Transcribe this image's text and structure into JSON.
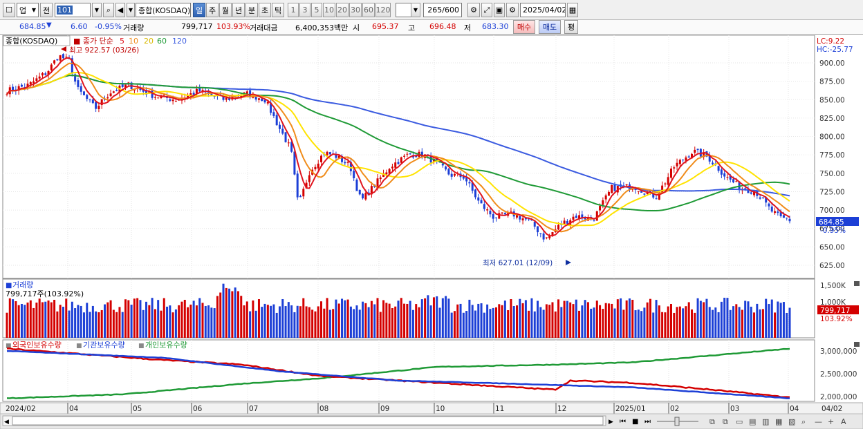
{
  "toolbar": {
    "market": "업",
    "prev_label": "전",
    "code": "101",
    "name": "종합(KOSDAQ)",
    "periods": [
      "일",
      "주",
      "월",
      "년",
      "분",
      "초",
      "틱"
    ],
    "active_period": "일",
    "intervals": [
      "1",
      "3",
      "5",
      "10",
      "20",
      "30",
      "60",
      "120"
    ],
    "count": "265",
    "count_total": "/600",
    "date": "2025/04/02"
  },
  "quote": {
    "price": "684.85",
    "direction_icon": "down-triangle-icon",
    "change": "6.60",
    "change_pct": "-0.95%",
    "volume_label": "거래량",
    "volume": "799,717",
    "volume_pct": "103.93%",
    "amount_label": "거래대금",
    "amount": "6,400,353백만",
    "open_label": "시",
    "open": "695.37",
    "high_label": "고",
    "high": "696.48",
    "low_label": "저",
    "low": "683.30",
    "buy_label": "매수",
    "sell_label": "매도",
    "avg_label": "평"
  },
  "main_panel": {
    "title": "종합(KOSDAQ)",
    "ma_label": "종가 단순",
    "ma_periods": [
      "5",
      "10",
      "20",
      "60",
      "120"
    ],
    "lc": "LC:9.22",
    "hc": "HC:-25.77",
    "price_tag": "684.85",
    "price_tag_pct": "-0.95%",
    "high_note": "최고 922.57 (03/26)",
    "low_note": "최저 627.01 (12/09)"
  },
  "volume_panel": {
    "title": "거래량",
    "info": "799,717주(103.92%)",
    "tag": "799,717",
    "tag_pct": "103.92%",
    "axis_labels": [
      "1,500K",
      "1,000K"
    ]
  },
  "holding_panel": {
    "legends": [
      "외국인보유수량",
      "기관보유수량",
      "개인보유수량"
    ],
    "axis_labels": [
      "3,000,000",
      "2,500,000",
      "2,000,000"
    ]
  },
  "x_axis": {
    "labels": [
      "2024/02",
      "04",
      "05",
      "06",
      "07",
      "08",
      "09",
      "10",
      "11",
      "12",
      "2025/01",
      "02",
      "03",
      "04",
      "04/02"
    ]
  },
  "colors": {
    "up": "#d40000",
    "down": "#1c3fd6",
    "ma5": "#e0141e",
    "ma10": "#f08c1a",
    "ma20": "#ffe300",
    "ma60": "#1f9a36",
    "ma120": "#3b5be0"
  },
  "chart_data": {
    "type": "line",
    "title": "종합(KOSDAQ)",
    "xlabel": "",
    "ylabel": "",
    "ylim": [
      600,
      935
    ],
    "y_ticks": [
      900,
      875,
      850,
      825,
      800,
      775,
      750,
      725,
      700,
      675,
      650,
      625
    ],
    "x": [
      "2024/02",
      "03",
      "04",
      "05",
      "06",
      "07",
      "08",
      "09",
      "10",
      "11",
      "12",
      "2025/01",
      "02",
      "03",
      "04/02"
    ],
    "series": [
      {
        "name": "종가",
        "values": [
          862,
          872,
          905,
          860,
          862,
          856,
          860,
          776,
          749,
          772,
          702,
          696,
          722,
          772,
          684.85
        ]
      },
      {
        "name": "120",
        "values": [
          835,
          838,
          848,
          856,
          858,
          855,
          845,
          815,
          790,
          765,
          738,
          728,
          725,
          726,
          721
        ]
      },
      {
        "name": "60",
        "values": [
          845,
          852,
          865,
          868,
          866,
          860,
          850,
          820,
          790,
          770,
          735,
          700,
          703,
          725,
          730
        ]
      }
    ]
  }
}
